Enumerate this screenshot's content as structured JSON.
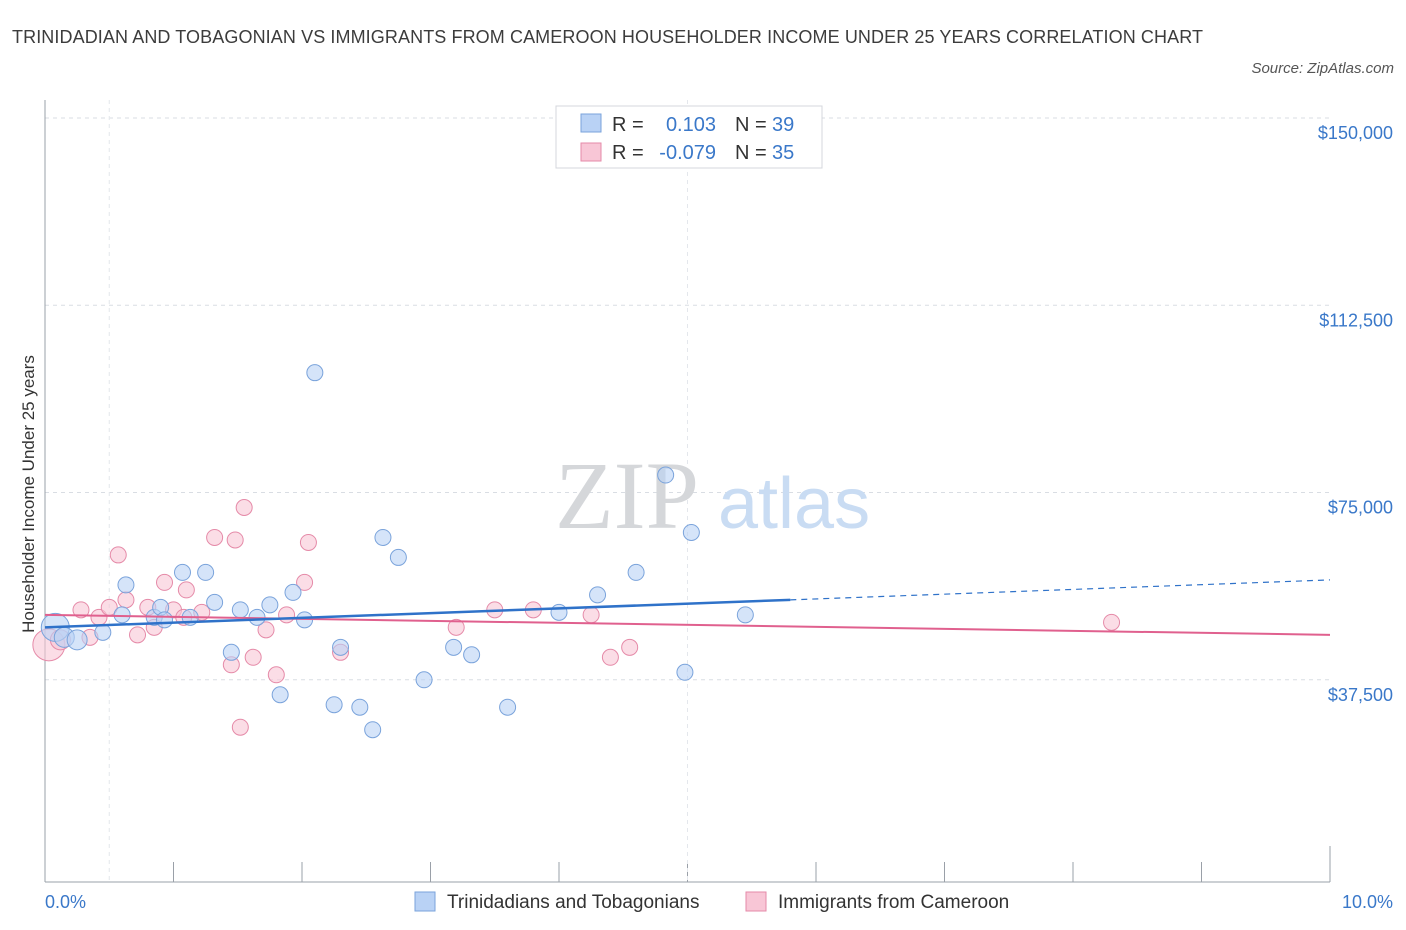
{
  "header": {
    "title": "TRINIDADIAN AND TOBAGONIAN VS IMMIGRANTS FROM CAMEROON HOUSEHOLDER INCOME UNDER 25 YEARS CORRELATION CHART",
    "source": "Source: ZipAtlas.com"
  },
  "watermark": {
    "zip": "ZIP",
    "atlas": "atlas"
  },
  "colors": {
    "series1_fill": "#b9d2f5",
    "series1_stroke": "#7aa3db",
    "series1_line": "#2f72c9",
    "series2_fill": "#f8c6d6",
    "series2_stroke": "#e58aa8",
    "series2_line": "#e0608e",
    "tick_text": "#3a78c9",
    "grid": "#d9dde3"
  },
  "chart_data": {
    "type": "scatter",
    "title": "TRINIDADIAN AND TOBAGONIAN VS IMMIGRANTS FROM CAMEROON HOUSEHOLDER INCOME UNDER 25 YEARS CORRELATION CHART",
    "xlabel": "",
    "ylabel": "Householder Income Under 25 years",
    "xlim": [
      0,
      10
    ],
    "ylim": [
      0,
      150000
    ],
    "x_tick_labels": [
      {
        "value": 0,
        "label": "0.0%"
      },
      {
        "value": 10,
        "label": "10.0%"
      }
    ],
    "y_ticks": [
      {
        "value": 37500,
        "label": "$37,500"
      },
      {
        "value": 75000,
        "label": "$75,000"
      },
      {
        "value": 112500,
        "label": "$112,500"
      },
      {
        "value": 150000,
        "label": "$150,000"
      }
    ],
    "legend_stats": [
      {
        "r_label": "R =",
        "r_value": "0.103",
        "n_label": "N =",
        "n_value": "39"
      },
      {
        "r_label": "R =",
        "r_value": "-0.079",
        "n_label": "N =",
        "n_value": "35"
      }
    ],
    "series": [
      {
        "name": "Trinidadians and Tobagonians",
        "r": 0.103,
        "n": 39,
        "trend": {
          "x0": 0,
          "y0": 51000,
          "x1": 5.8,
          "y1": 56500,
          "dash_x1": 10,
          "dash_y1": 60500
        },
        "points": [
          [
            0.08,
            51000,
            14
          ],
          [
            0.15,
            49000,
            10
          ],
          [
            0.25,
            48500,
            10
          ],
          [
            0.45,
            50000,
            8
          ],
          [
            0.6,
            53500,
            8
          ],
          [
            0.63,
            59500,
            8
          ],
          [
            0.85,
            53000,
            8
          ],
          [
            0.9,
            55000,
            8
          ],
          [
            0.93,
            52500,
            8
          ],
          [
            1.07,
            62000,
            8
          ],
          [
            1.13,
            53000,
            8
          ],
          [
            1.25,
            62000,
            8
          ],
          [
            1.32,
            56000,
            8
          ],
          [
            1.45,
            46000,
            8
          ],
          [
            1.52,
            54500,
            8
          ],
          [
            1.65,
            53000,
            8
          ],
          [
            1.75,
            55500,
            8
          ],
          [
            1.83,
            37500,
            8
          ],
          [
            1.93,
            58000,
            8
          ],
          [
            2.02,
            52500,
            8
          ],
          [
            2.1,
            102000,
            8
          ],
          [
            2.25,
            35500,
            8
          ],
          [
            2.3,
            47000,
            8
          ],
          [
            2.45,
            35000,
            8
          ],
          [
            2.55,
            30500,
            8
          ],
          [
            2.63,
            69000,
            8
          ],
          [
            2.75,
            65000,
            8
          ],
          [
            2.95,
            40500,
            8
          ],
          [
            3.18,
            47000,
            8
          ],
          [
            3.32,
            45500,
            8
          ],
          [
            3.6,
            35000,
            8
          ],
          [
            4.0,
            54000,
            8
          ],
          [
            4.3,
            57500,
            8
          ],
          [
            4.6,
            62000,
            8
          ],
          [
            4.83,
            81500,
            8
          ],
          [
            4.98,
            42000,
            8
          ],
          [
            5.03,
            70000,
            8
          ],
          [
            5.45,
            53500,
            8
          ]
        ]
      },
      {
        "name": "Immigrants from Cameroon",
        "r": -0.079,
        "n": 35,
        "trend": {
          "x0": 0,
          "y0": 53500,
          "x1": 10,
          "y1": 49500
        },
        "points": [
          [
            0.03,
            47500,
            16
          ],
          [
            0.12,
            48500,
            10
          ],
          [
            0.28,
            54500,
            8
          ],
          [
            0.35,
            49000,
            8
          ],
          [
            0.42,
            53000,
            8
          ],
          [
            0.5,
            55000,
            8
          ],
          [
            0.57,
            65500,
            8
          ],
          [
            0.63,
            56500,
            8
          ],
          [
            0.72,
            49500,
            8
          ],
          [
            0.8,
            55000,
            8
          ],
          [
            0.85,
            51000,
            8
          ],
          [
            0.93,
            60000,
            8
          ],
          [
            1.0,
            54500,
            8
          ],
          [
            1.08,
            53000,
            8
          ],
          [
            1.1,
            58500,
            8
          ],
          [
            1.22,
            54000,
            8
          ],
          [
            1.32,
            69000,
            8
          ],
          [
            1.45,
            43500,
            8
          ],
          [
            1.48,
            68500,
            8
          ],
          [
            1.52,
            31000,
            8
          ],
          [
            1.55,
            75000,
            8
          ],
          [
            1.62,
            45000,
            8
          ],
          [
            1.72,
            50500,
            8
          ],
          [
            1.8,
            41500,
            8
          ],
          [
            1.88,
            53500,
            8
          ],
          [
            2.02,
            60000,
            8
          ],
          [
            2.05,
            68000,
            8
          ],
          [
            2.3,
            46000,
            8
          ],
          [
            3.2,
            51000,
            8
          ],
          [
            3.5,
            54500,
            8
          ],
          [
            3.8,
            54500,
            8
          ],
          [
            4.25,
            53500,
            8
          ],
          [
            4.4,
            45000,
            8
          ],
          [
            4.55,
            47000,
            8
          ],
          [
            8.3,
            52000,
            8
          ]
        ]
      }
    ]
  }
}
